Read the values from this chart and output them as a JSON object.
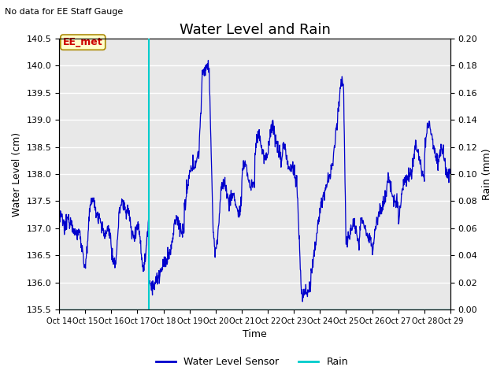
{
  "title": "Water Level and Rain",
  "subtitle": "No data for EE Staff Gauge",
  "xlabel": "Time",
  "ylabel_left": "Water Level (cm)",
  "ylabel_right": "Rain (mm)",
  "ylim_left": [
    135.5,
    140.5
  ],
  "ylim_right": [
    0.0,
    0.2
  ],
  "yticks_left": [
    135.5,
    136.0,
    136.5,
    137.0,
    137.5,
    138.0,
    138.5,
    139.0,
    139.5,
    140.0,
    140.5
  ],
  "yticks_right": [
    0.0,
    0.02,
    0.04,
    0.06,
    0.08,
    0.1,
    0.12,
    0.14,
    0.16,
    0.18,
    0.2
  ],
  "xtick_labels": [
    "Oct 14",
    "Oct 15",
    "Oct 16",
    "Oct 17",
    "Oct 18",
    "Oct 19",
    "Oct 20",
    "Oct 21",
    "Oct 22",
    "Oct 23",
    "Oct 24",
    "Oct 25",
    "Oct 26",
    "Oct 27",
    "Oct 28",
    "Oct 29"
  ],
  "water_color": "#0000cc",
  "rain_color": "#00cccc",
  "bg_color": "#e8e8e8",
  "legend_water": "Water Level Sensor",
  "legend_rain": "Rain",
  "annotation_text": "EE_met",
  "annotation_color": "#cc0000",
  "annotation_bg": "#ffffcc",
  "annotation_edge": "#aa8800",
  "vline_x": 17.45,
  "title_fontsize": 13,
  "axis_fontsize": 9,
  "tick_fontsize": 8,
  "subtitle_fontsize": 8,
  "figsize": [
    6.4,
    4.8
  ],
  "dpi": 100
}
